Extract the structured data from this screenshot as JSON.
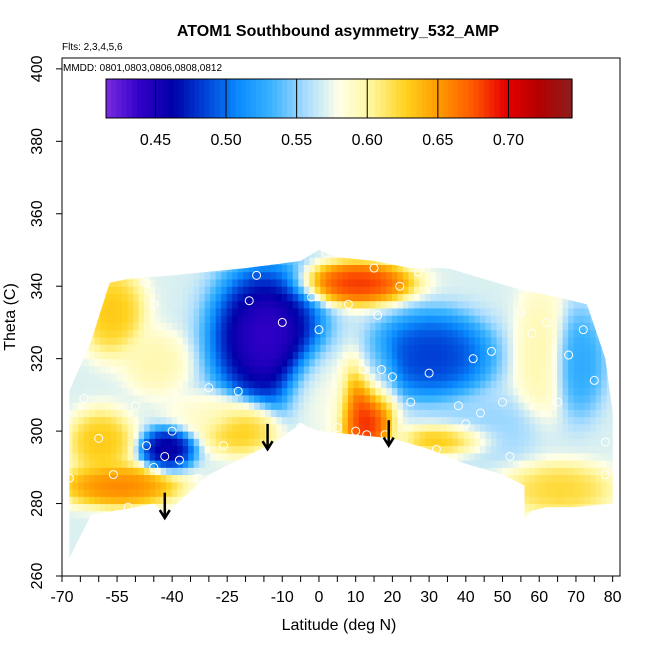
{
  "chart_data": {
    "type": "heatmap",
    "title": "ATOM1 Southbound asymmetry_532_AMP",
    "flights_note": "Flts: 2,3,4,5,6",
    "dates_note": "MMDD: 0801,0803,0806,0808,0812",
    "xlabel": "Latitude (deg N)",
    "ylabel": "Theta (C)",
    "xlim": [
      -70,
      82
    ],
    "ylim": [
      260,
      403
    ],
    "x_tick_labels": [
      "-70",
      "-55",
      "-40",
      "-25",
      "-10",
      "0",
      "10",
      "20",
      "30",
      "40",
      "50",
      "60",
      "70",
      "80"
    ],
    "x_tick_values": [
      -70,
      -55,
      -40,
      -25,
      -10,
      0,
      10,
      20,
      30,
      40,
      50,
      60,
      70,
      80
    ],
    "y_tick_values": [
      260,
      280,
      300,
      320,
      340,
      360,
      380,
      400
    ],
    "y_tick_labels": [
      "260",
      "280",
      "300",
      "320",
      "340",
      "360",
      "380",
      "400"
    ],
    "colorbar": {
      "vmin": 0.415,
      "vmax": 0.745,
      "tick_values": [
        0.45,
        0.5,
        0.55,
        0.6,
        0.65,
        0.7
      ],
      "tick_labels": [
        "0.45",
        "0.50",
        "0.55",
        "0.60",
        "0.65",
        "0.70"
      ],
      "colors": [
        "#7b2be0",
        "#3300c8",
        "#0000a8",
        "#0044d8",
        "#0a8cff",
        "#3cb4ff",
        "#a8dcff",
        "#ffffe6",
        "#fff59a",
        "#ffd21e",
        "#ff9a00",
        "#ff5a00",
        "#e80000",
        "#b40000",
        "#8c1e1e"
      ]
    },
    "upper_boundary": [
      [
        -68,
        311
      ],
      [
        -62,
        325
      ],
      [
        -57,
        341
      ],
      [
        -52,
        342
      ],
      [
        -40,
        343
      ],
      [
        -30,
        344
      ],
      [
        -20,
        345
      ],
      [
        -12,
        346
      ],
      [
        -5,
        347
      ],
      [
        0,
        350
      ],
      [
        5,
        348
      ],
      [
        15,
        347
      ],
      [
        25,
        345
      ],
      [
        35,
        345
      ],
      [
        45,
        342
      ],
      [
        55,
        339
      ],
      [
        65,
        337
      ],
      [
        73,
        335
      ],
      [
        78,
        320
      ],
      [
        80,
        305
      ],
      [
        80,
        280
      ]
    ],
    "lower_boundary": [
      [
        -68,
        265
      ],
      [
        -62,
        277
      ],
      [
        -55,
        278
      ],
      [
        -45,
        280
      ],
      [
        -42,
        277
      ],
      [
        -30,
        288
      ],
      [
        -20,
        293
      ],
      [
        -12,
        297
      ],
      [
        -5,
        302
      ],
      [
        0,
        300
      ],
      [
        10,
        299
      ],
      [
        20,
        298
      ],
      [
        30,
        295
      ],
      [
        40,
        291
      ],
      [
        50,
        288
      ],
      [
        56,
        285
      ],
      [
        56,
        276
      ],
      [
        58,
        278
      ],
      [
        62,
        279
      ],
      [
        70,
        279
      ],
      [
        80,
        280
      ]
    ],
    "field_blobs": [
      {
        "x": -15,
        "y": 325,
        "v": 0.42,
        "rx": 10,
        "ry": 13
      },
      {
        "x": 30,
        "y": 320,
        "v": 0.47,
        "rx": 11,
        "ry": 8
      },
      {
        "x": 10,
        "y": 340,
        "v": 0.7,
        "rx": 10,
        "ry": 4
      },
      {
        "x": 12,
        "y": 305,
        "v": 0.71,
        "rx": 5,
        "ry": 10
      },
      {
        "x": 15,
        "y": 315,
        "v": 0.53,
        "rx": 4,
        "ry": 7
      },
      {
        "x": -42,
        "y": 294,
        "v": 0.44,
        "rx": 5,
        "ry": 4
      },
      {
        "x": -55,
        "y": 284,
        "v": 0.67,
        "rx": 11,
        "ry": 4
      },
      {
        "x": -60,
        "y": 296,
        "v": 0.64,
        "rx": 6,
        "ry": 6
      },
      {
        "x": -45,
        "y": 318,
        "v": 0.6,
        "rx": 6,
        "ry": 6
      },
      {
        "x": -57,
        "y": 332,
        "v": 0.64,
        "rx": 6,
        "ry": 8
      },
      {
        "x": -30,
        "y": 304,
        "v": 0.59,
        "rx": 8,
        "ry": 4
      },
      {
        "x": -22,
        "y": 300,
        "v": 0.64,
        "rx": 7,
        "ry": 5
      },
      {
        "x": 0,
        "y": 310,
        "v": 0.58,
        "rx": 7,
        "ry": 9
      },
      {
        "x": 45,
        "y": 300,
        "v": 0.55,
        "rx": 12,
        "ry": 6
      },
      {
        "x": 60,
        "y": 320,
        "v": 0.6,
        "rx": 5,
        "ry": 14
      },
      {
        "x": 70,
        "y": 318,
        "v": 0.52,
        "rx": 5,
        "ry": 10
      },
      {
        "x": 65,
        "y": 283,
        "v": 0.63,
        "rx": 10,
        "ry": 5
      },
      {
        "x": 35,
        "y": 297,
        "v": 0.66,
        "rx": 8,
        "ry": 3
      }
    ],
    "field_background": 0.57,
    "points": [
      [
        -68,
        287
      ],
      [
        -64,
        309
      ],
      [
        -60,
        298
      ],
      [
        -56,
        288
      ],
      [
        -55,
        277
      ],
      [
        -52,
        279
      ],
      [
        -50,
        307
      ],
      [
        -47,
        296
      ],
      [
        -45,
        290
      ],
      [
        -42,
        293
      ],
      [
        -47,
        341
      ],
      [
        -45,
        335
      ],
      [
        -40,
        300
      ],
      [
        -38,
        292
      ],
      [
        -33,
        287
      ],
      [
        -30,
        312
      ],
      [
        -26,
        296
      ],
      [
        -22,
        311
      ],
      [
        -19,
        336
      ],
      [
        -17,
        343
      ],
      [
        -10,
        330
      ],
      [
        -5,
        301
      ],
      [
        -2,
        337
      ],
      [
        0,
        328
      ],
      [
        0,
        299
      ],
      [
        2,
        349
      ],
      [
        5,
        301
      ],
      [
        8,
        335
      ],
      [
        10,
        300
      ],
      [
        12,
        317
      ],
      [
        13,
        299
      ],
      [
        15,
        345
      ],
      [
        16,
        332
      ],
      [
        17,
        317
      ],
      [
        18,
        299
      ],
      [
        20,
        315
      ],
      [
        22,
        340
      ],
      [
        25,
        308
      ],
      [
        27,
        344
      ],
      [
        30,
        316
      ],
      [
        32,
        295
      ],
      [
        35,
        346
      ],
      [
        38,
        307
      ],
      [
        40,
        302
      ],
      [
        42,
        320
      ],
      [
        44,
        305
      ],
      [
        47,
        322
      ],
      [
        50,
        308
      ],
      [
        52,
        293
      ],
      [
        55,
        333
      ],
      [
        58,
        327
      ],
      [
        62,
        330
      ],
      [
        65,
        308
      ],
      [
        68,
        321
      ],
      [
        72,
        328
      ],
      [
        75,
        314
      ],
      [
        78,
        288
      ],
      [
        78,
        297
      ]
    ],
    "arrows": [
      {
        "x": -42,
        "y_top": 283,
        "y_bottom": 276
      },
      {
        "x": -14,
        "y_top": 302,
        "y_bottom": 295
      },
      {
        "x": 19,
        "y_top": 303,
        "y_bottom": 296
      }
    ]
  }
}
